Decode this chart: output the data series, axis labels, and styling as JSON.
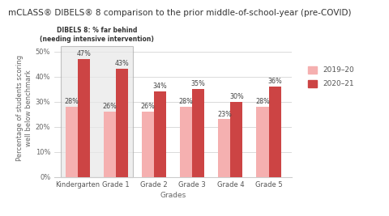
{
  "title": "mCLASS® DIBELS® 8 comparison to the prior middle-of-school-year (pre-COVID)",
  "categories": [
    "Kindergarten",
    "Grade 1",
    "Grade 2",
    "Grade 3",
    "Grade 4",
    "Grade 5"
  ],
  "values_2019": [
    28,
    26,
    26,
    28,
    23,
    28
  ],
  "values_2020": [
    47,
    43,
    34,
    35,
    30,
    36
  ],
  "color_2019": "#f5b0b0",
  "color_2020": "#cc4444",
  "ylabel": "Percentage of students scoring\nwell below benchmark",
  "xlabel": "Grades",
  "ylim": [
    0,
    55
  ],
  "yticks": [
    0,
    10,
    20,
    30,
    40,
    50
  ],
  "ytick_labels": [
    "0%",
    "10%",
    "20%",
    "30%",
    "40%",
    "50%"
  ],
  "legend_2019": "2019–20",
  "legend_2020": "2020–21",
  "annotation_box_text": "DIBELS 8: % far behind\n(needing intensive intervention)",
  "background_color": "#ffffff",
  "title_fontsize": 7.5,
  "axis_fontsize": 6.5,
  "tick_fontsize": 6.0,
  "label_fontsize": 5.8,
  "bar_width": 0.32,
  "box_facecolor": "#e8e8e8",
  "box_edgecolor": "#aaaaaa"
}
